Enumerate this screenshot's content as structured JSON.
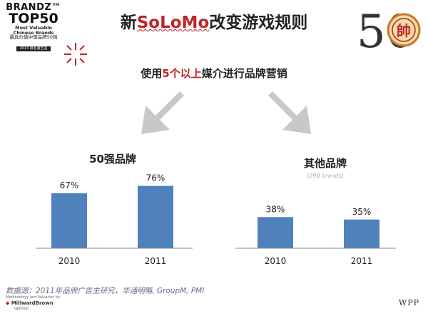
{
  "logo": {
    "line1": "BRANDZ™",
    "line2": "TOP50",
    "line3": "Most Valuable",
    "line4": "Chinese Brands",
    "line5": "最具价值中国品牌50强",
    "line6": "2013 排名第五名"
  },
  "header": {
    "title_prefix": "新",
    "title_highlight": "SoLoMo",
    "title_suffix": "改变游戏规则"
  },
  "subtitle": {
    "prefix": "使用",
    "highlight": "5个以上",
    "suffix": "媒介进行品牌营销"
  },
  "colors": {
    "bar": "#4f81bd",
    "accent_red": "#c0232a",
    "arrow": "#c8c8c8",
    "axis": "#888888"
  },
  "chart_data": [
    {
      "type": "bar",
      "title": "50强品牌",
      "categories": [
        "2010",
        "2011"
      ],
      "values": [
        67,
        76
      ],
      "value_labels": [
        "67%",
        "76%"
      ],
      "ylim": [
        0,
        100
      ]
    },
    {
      "type": "bar",
      "title": "其他品牌",
      "note": "(290 brands)",
      "categories": [
        "2010",
        "2011"
      ],
      "values": [
        38,
        35
      ],
      "value_labels": [
        "38%",
        "35%"
      ],
      "ylim": [
        0,
        100
      ]
    }
  ],
  "footer": {
    "source": "数据源：2011年品牌广告主研究，华通明略, GroupM, PMI",
    "methodology": "Methodology and Valuation by",
    "mb_name": "MillwardBrown",
    "mb_sub": "Optimor",
    "wpp": "WPP"
  },
  "badge": {
    "number": "50",
    "glyph": "帥"
  }
}
